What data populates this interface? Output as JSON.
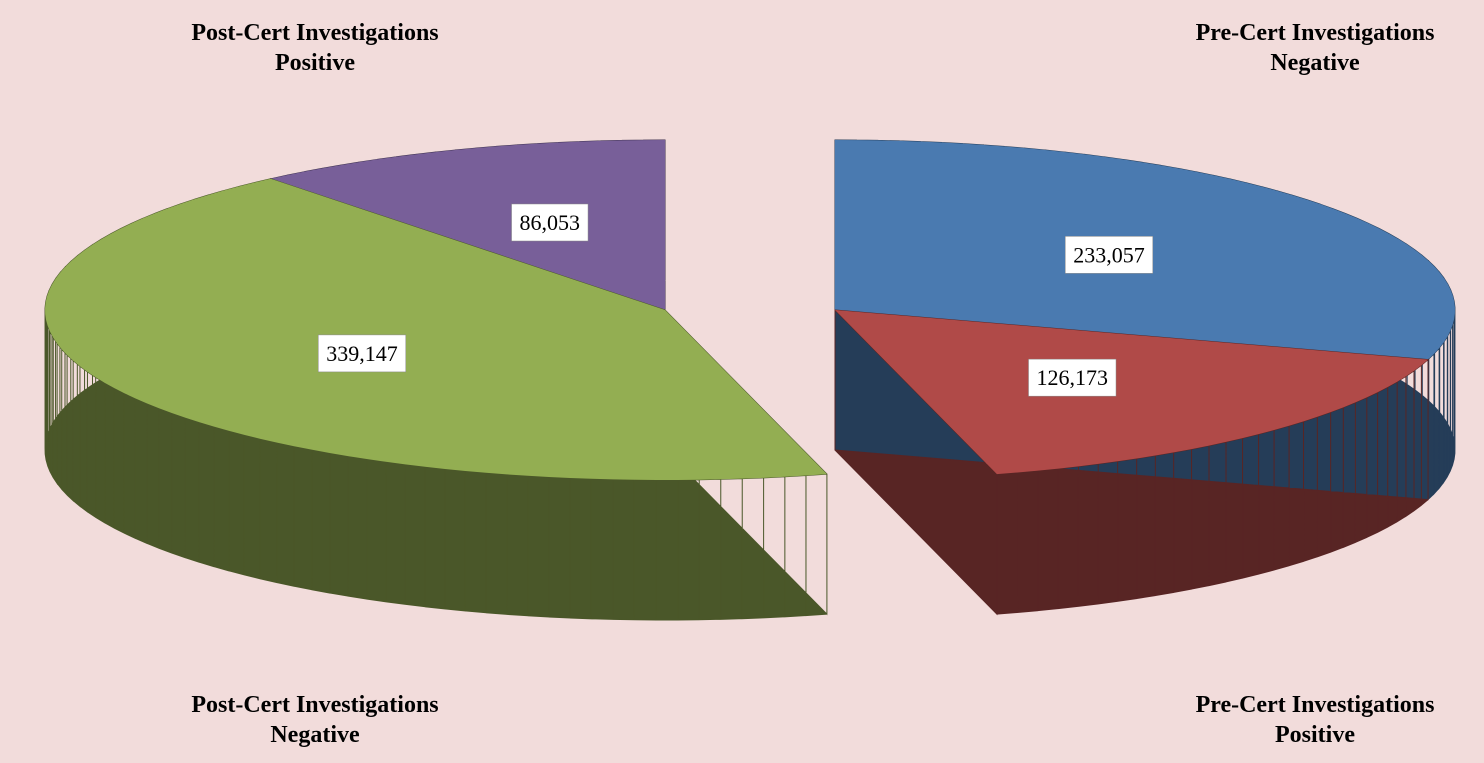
{
  "chart_data": {
    "type": "pie3d",
    "categories": [
      "Pre-Cert Investigations Negative",
      "Pre-Cert Investigations Positive",
      "Post-Cert Investigations Negative",
      "Post-Cert Investigations Positive"
    ],
    "values": [
      233057,
      126173,
      339147,
      86053
    ],
    "value_labels": [
      "233,057",
      "126,173",
      "339,147",
      "86,053"
    ],
    "colors": [
      "#4a7ab0",
      "#b04a48",
      "#93ae52",
      "#785f99"
    ],
    "background": "#f2dcdb"
  }
}
